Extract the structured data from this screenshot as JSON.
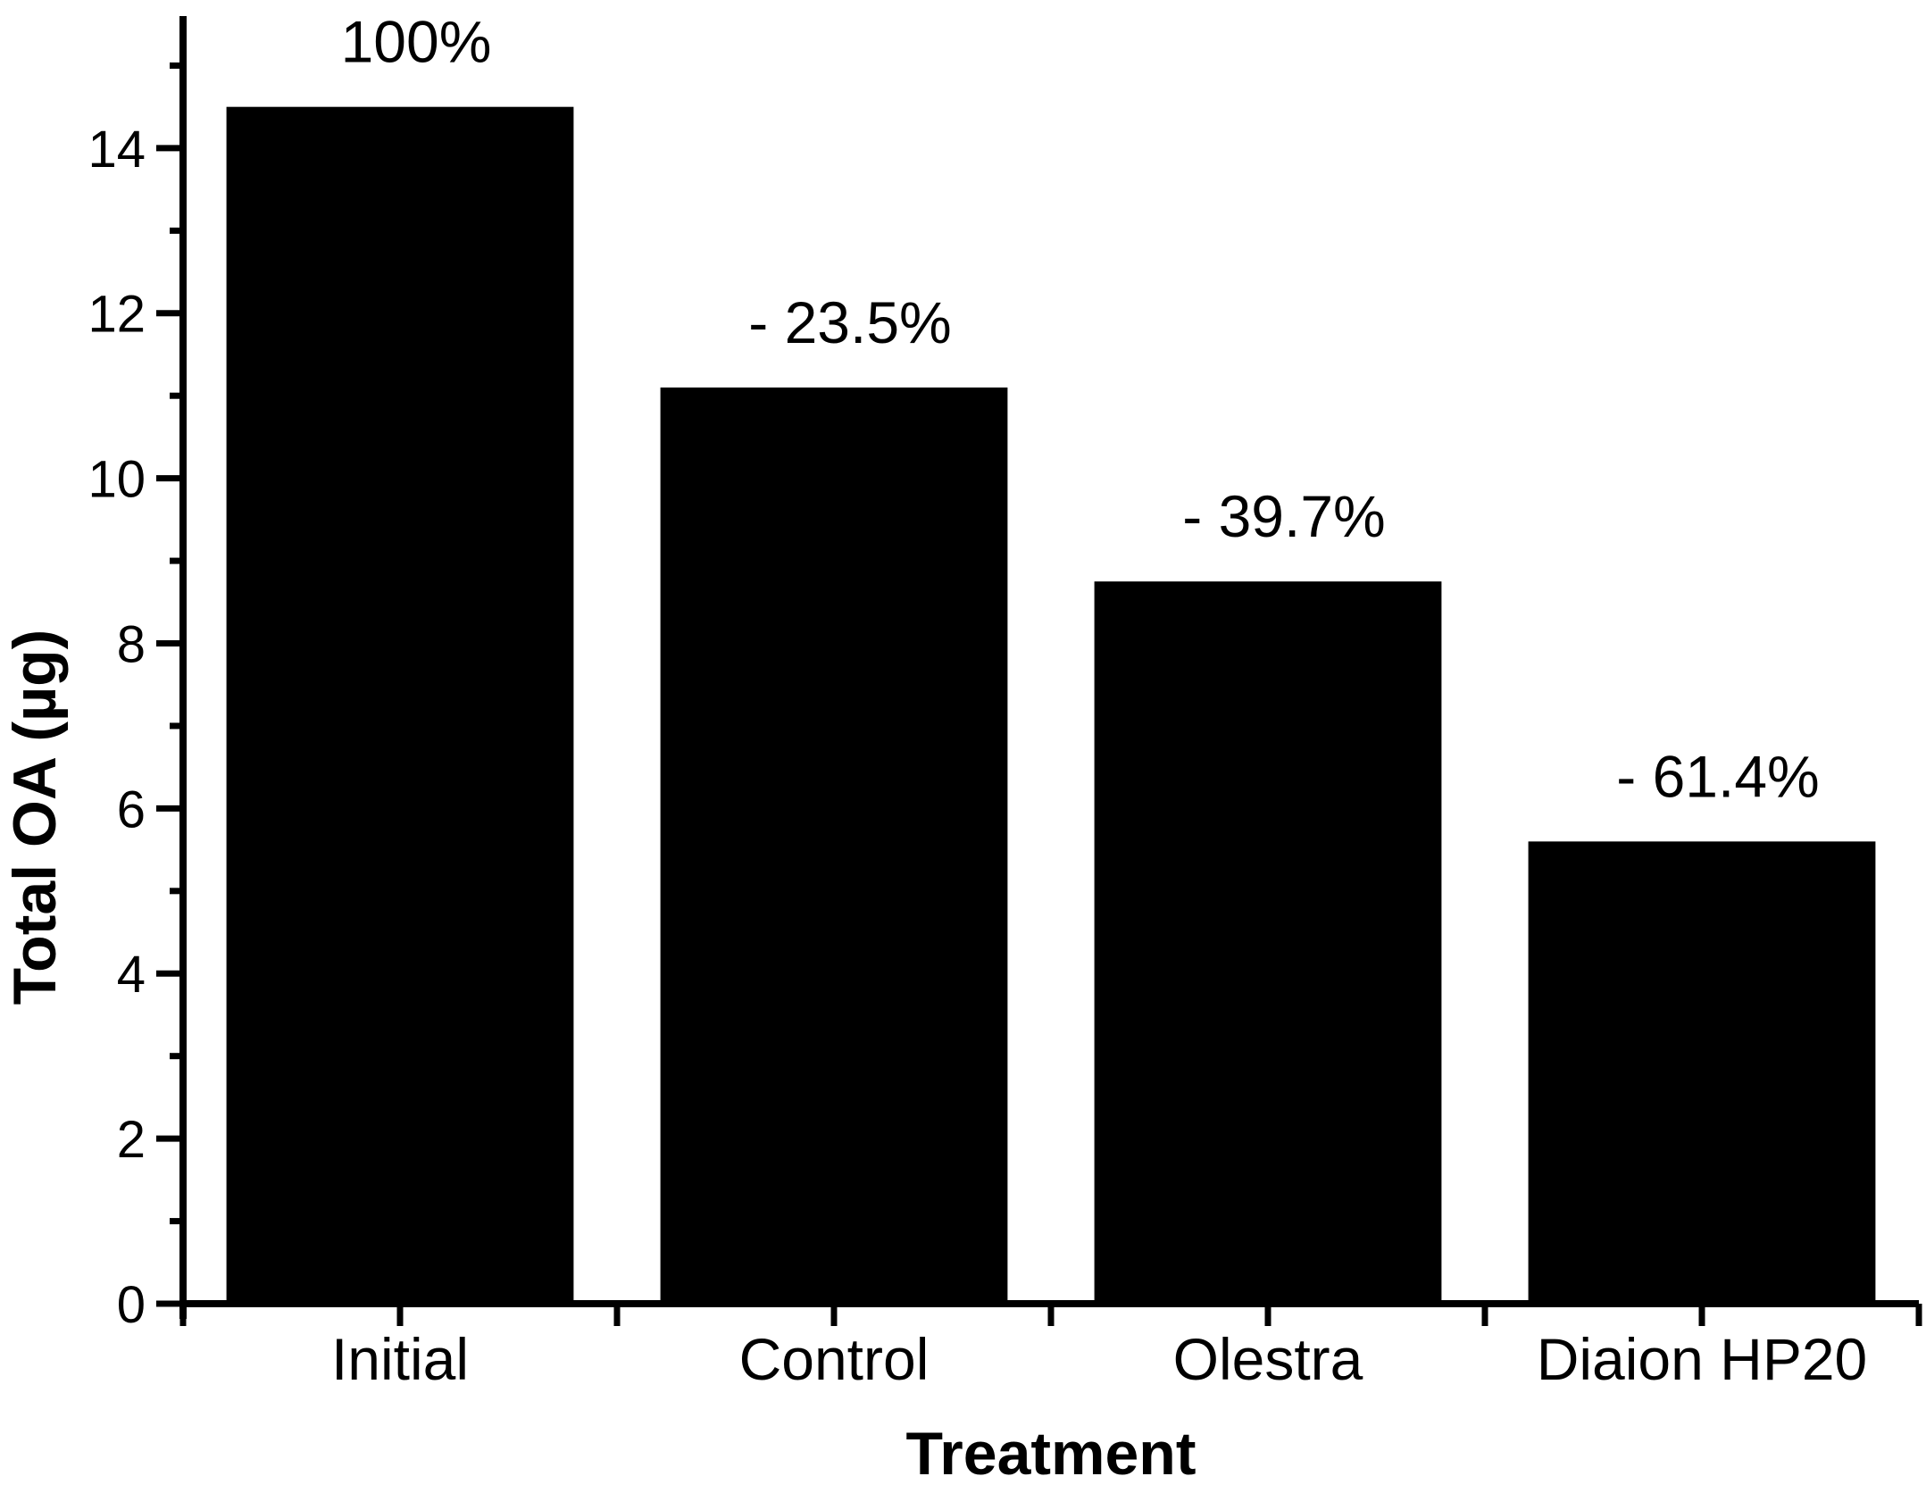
{
  "page": {
    "background_color": "#ffffff",
    "text_color": "#000000"
  },
  "chart_data": {
    "type": "bar",
    "title": "",
    "xlabel": "Treatment",
    "ylabel": "Total OA (µg)",
    "categories": [
      "Initial",
      "Control",
      "Olestra",
      "Diaion HP20"
    ],
    "values": [
      14.5,
      11.1,
      8.75,
      5.6
    ],
    "bar_labels": [
      "100%",
      "- 23.5%",
      "- 39.7%",
      "- 61.4%"
    ],
    "series_name": "Total OA",
    "ylim": [
      0,
      15.6
    ],
    "y_major_step": 2,
    "y_minor_step": 1,
    "y_major_ticks": [
      0,
      2,
      4,
      6,
      8,
      10,
      12,
      14
    ],
    "bar_color": "#000000",
    "axis_color": "#000000",
    "grid": false,
    "legend": "none"
  }
}
